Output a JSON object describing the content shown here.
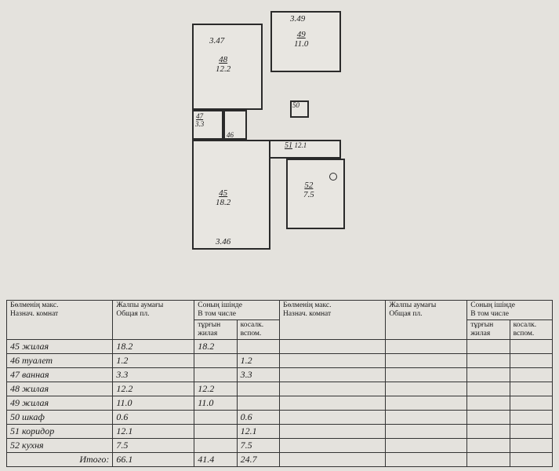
{
  "floorplan": {
    "rooms": {
      "r48": {
        "num": "48",
        "area": "12.2",
        "dim_top": "3.47"
      },
      "r49": {
        "num": "49",
        "area": "11.0",
        "dim_top": "3.49"
      },
      "r47": {
        "num": "47",
        "area": "3.3"
      },
      "r46": {
        "num": "46"
      },
      "r50": {
        "num": "50"
      },
      "r51": {
        "num": "51",
        "area": "12.1"
      },
      "r45": {
        "num": "45",
        "area": "18.2",
        "dim_bottom": "3.46"
      },
      "r52": {
        "num": "52",
        "area": "7.5"
      }
    }
  },
  "table": {
    "headers": {
      "room": "Бөлменің макс.\nНазнач. комнат",
      "total": "Жалпы аумағы\nОбщая пл.",
      "incl": "Соның ішінде\nВ том числе",
      "liv": "тұрғын\nжилая",
      "aux": "косалк.\nвспом."
    },
    "rows": [
      {
        "room": "45 жилая",
        "total": "18.2",
        "liv": "18.2",
        "aux": ""
      },
      {
        "room": "46 туалет",
        "total": "1.2",
        "liv": "",
        "aux": "1.2"
      },
      {
        "room": "47 ванная",
        "total": "3.3",
        "liv": "",
        "aux": "3.3"
      },
      {
        "room": "48 жилая",
        "total": "12.2",
        "liv": "12.2",
        "aux": ""
      },
      {
        "room": "49 жилая",
        "total": "11.0",
        "liv": "11.0",
        "aux": ""
      },
      {
        "room": "50 шкаф",
        "total": "0.6",
        "liv": "",
        "aux": "0.6"
      },
      {
        "room": "51 коридор",
        "total": "12.1",
        "liv": "",
        "aux": "12.1"
      },
      {
        "room": "52 кухня",
        "total": "7.5",
        "liv": "",
        "aux": "7.5"
      }
    ],
    "total": {
      "label": "Итого:",
      "total": "66.1",
      "liv": "41.4",
      "aux": "24.7"
    }
  }
}
